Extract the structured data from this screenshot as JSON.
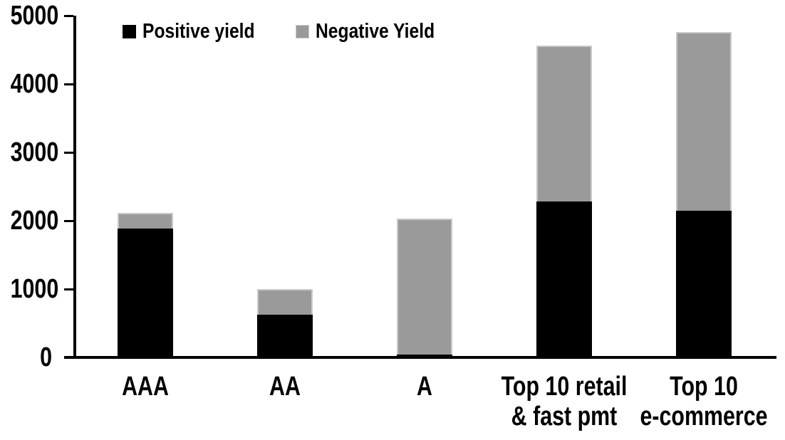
{
  "chart_data": {
    "type": "bar",
    "stacked": true,
    "title": "",
    "xlabel": "",
    "ylabel": "",
    "categories": [
      "AAA",
      "AA",
      "A",
      "Top 10 retail & fast pmt",
      "Top 10 e-commerce"
    ],
    "category_label_lines": [
      [
        "AAA"
      ],
      [
        "AA"
      ],
      [
        "A"
      ],
      [
        "Top 10 retail",
        "& fast pmt"
      ],
      [
        "Top 10",
        "e-commerce"
      ]
    ],
    "series": [
      {
        "name": "Positive yield",
        "color": "#000000",
        "values": [
          1890,
          620,
          40,
          2280,
          2150
        ]
      },
      {
        "name": "Negative Yield",
        "color": "#9a9a9a",
        "values": [
          220,
          380,
          1990,
          2280,
          2610
        ]
      }
    ],
    "totals": [
      2110,
      1000,
      2030,
      4560,
      4760
    ],
    "ylim": [
      0,
      5000
    ],
    "yticks": [
      "0",
      "1000",
      "2000",
      "3000",
      "4000",
      "5000"
    ],
    "grid": false,
    "legend_position": "top-left",
    "axis_color": "#000000",
    "background_color": "#ffffff"
  },
  "legend": {
    "items": [
      {
        "label": "Positive yield",
        "color": "#000000"
      },
      {
        "label": "Negative Yield",
        "color": "#9a9a9a"
      }
    ]
  }
}
